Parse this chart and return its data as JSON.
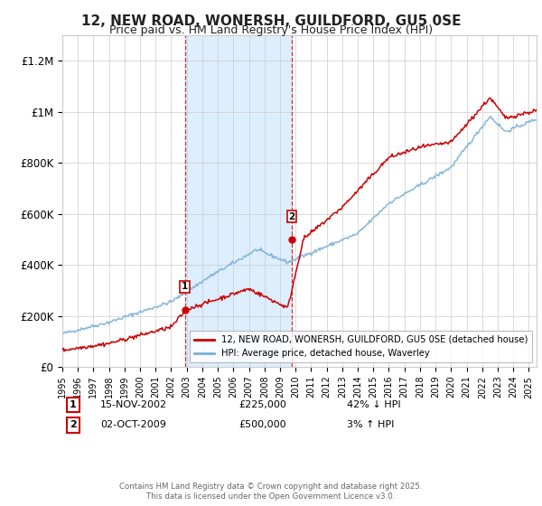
{
  "title": "12, NEW ROAD, WONERSH, GUILDFORD, GU5 0SE",
  "subtitle": "Price paid vs. HM Land Registry's House Price Index (HPI)",
  "title_fontsize": 11,
  "subtitle_fontsize": 9,
  "ylabel_ticks": [
    "£0",
    "£200K",
    "£400K",
    "£600K",
    "£800K",
    "£1M",
    "£1.2M"
  ],
  "ytick_values": [
    0,
    200000,
    400000,
    600000,
    800000,
    1000000,
    1200000
  ],
  "ylim": [
    0,
    1300000
  ],
  "year_start": 1995,
  "year_end": 2025,
  "sale1_year": 2002.875,
  "sale1_price": 225000,
  "sale1_date": "15-NOV-2002",
  "sale1_pct": "42% ↓ HPI",
  "sale2_year": 2009.75,
  "sale2_price": 500000,
  "sale2_date": "02-OCT-2009",
  "sale2_pct": "3% ↑ HPI",
  "red_line_color": "#cc0000",
  "blue_line_color": "#7bafd4",
  "shade_color": "#ddeeff",
  "vline_color": "#cc0000",
  "legend1_label": "12, NEW ROAD, WONERSH, GUILDFORD, GU5 0SE (detached house)",
  "legend2_label": "HPI: Average price, detached house, Waverley",
  "footer": "Contains HM Land Registry data © Crown copyright and database right 2025.\nThis data is licensed under the Open Government Licence v3.0.",
  "background_color": "#ffffff",
  "grid_color": "#cccccc"
}
